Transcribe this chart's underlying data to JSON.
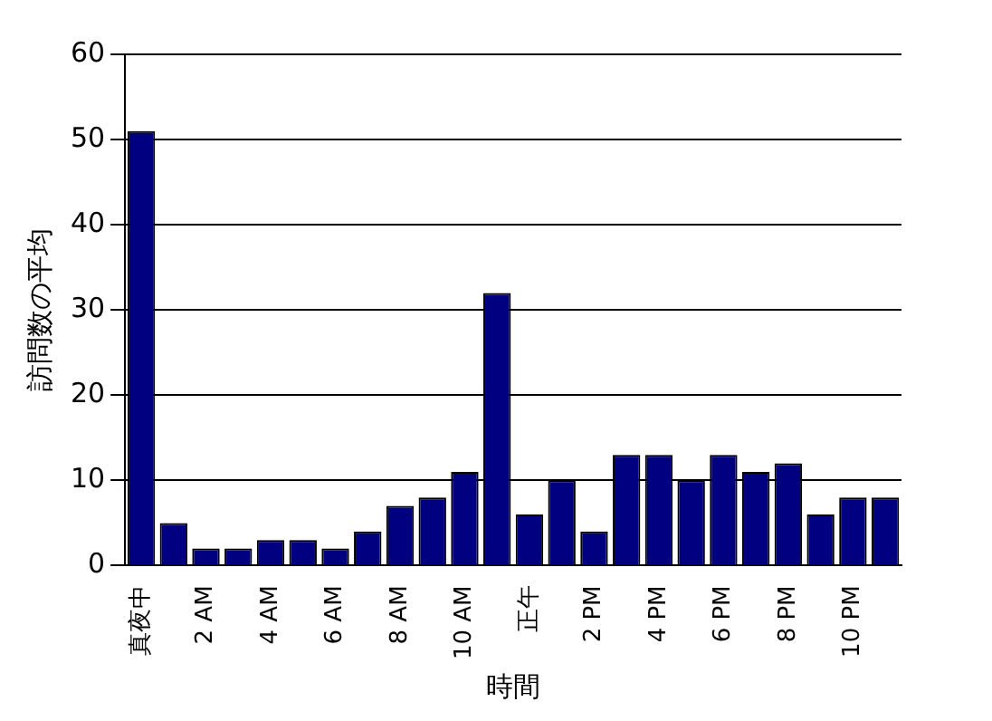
{
  "chart_data": {
    "type": "bar",
    "xlabel": "時間",
    "ylabel": "訪問数の平均",
    "categories": [
      "真夜中",
      null,
      "2 AM",
      null,
      "4 AM",
      null,
      "6 AM",
      null,
      "8 AM",
      null,
      "10 AM",
      null,
      "正午",
      null,
      "2 PM",
      null,
      "4 PM",
      null,
      "6 PM",
      null,
      "8 PM",
      null,
      "10 PM",
      null
    ],
    "values": [
      51,
      5,
      2,
      2,
      3,
      3,
      2,
      4,
      7,
      8,
      11,
      32,
      6,
      10,
      4,
      13,
      13,
      10,
      13,
      11,
      12,
      6,
      8,
      8
    ],
    "color": "#000080",
    "ylim": [
      0,
      60
    ],
    "yticks": [
      0,
      10,
      20,
      30,
      40,
      50,
      60
    ],
    "grid": "y",
    "legend": false
  }
}
